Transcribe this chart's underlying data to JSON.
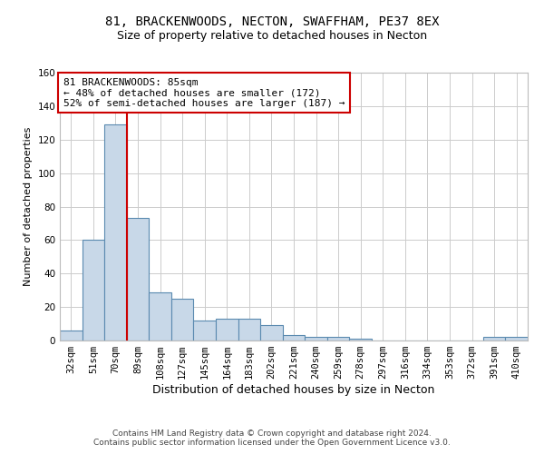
{
  "title1": "81, BRACKENWOODS, NECTON, SWAFFHAM, PE37 8EX",
  "title2": "Size of property relative to detached houses in Necton",
  "xlabel": "Distribution of detached houses by size in Necton",
  "ylabel": "Number of detached properties",
  "footer1": "Contains HM Land Registry data © Crown copyright and database right 2024.",
  "footer2": "Contains public sector information licensed under the Open Government Licence v3.0.",
  "categories": [
    "32sqm",
    "51sqm",
    "70sqm",
    "89sqm",
    "108sqm",
    "127sqm",
    "145sqm",
    "164sqm",
    "183sqm",
    "202sqm",
    "221sqm",
    "240sqm",
    "259sqm",
    "278sqm",
    "297sqm",
    "316sqm",
    "334sqm",
    "353sqm",
    "372sqm",
    "391sqm",
    "410sqm"
  ],
  "values": [
    6,
    60,
    129,
    73,
    29,
    25,
    12,
    13,
    13,
    9,
    3,
    2,
    2,
    1,
    0,
    0,
    0,
    0,
    0,
    2,
    2
  ],
  "bar_color": "#c8d8e8",
  "bar_edge_color": "#5a8ab0",
  "vline_x_index": 2.5,
  "vline_color": "#cc0000",
  "annotation_text": "81 BRACKENWOODS: 85sqm\n← 48% of detached houses are smaller (172)\n52% of semi-detached houses are larger (187) →",
  "annotation_box_color": "#ffffff",
  "annotation_box_edge": "#cc0000",
  "ylim": [
    0,
    160
  ],
  "yticks": [
    0,
    20,
    40,
    60,
    80,
    100,
    120,
    140,
    160
  ],
  "grid_color": "#cccccc",
  "background_color": "#ffffff",
  "title1_fontsize": 10,
  "title2_fontsize": 9,
  "xlabel_fontsize": 9,
  "ylabel_fontsize": 8,
  "tick_fontsize": 7.5,
  "annotation_fontsize": 8,
  "footer_fontsize": 6.5
}
